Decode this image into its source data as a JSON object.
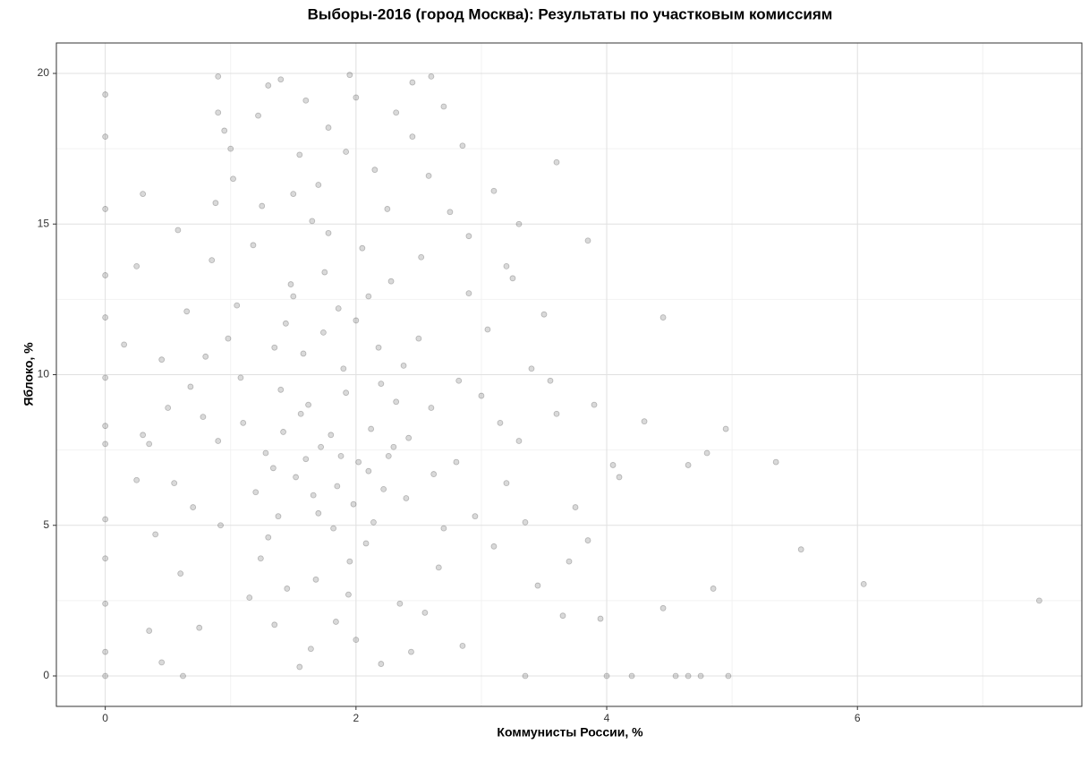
{
  "chart_data": {
    "type": "scatter",
    "title": "Выборы-2016 (город Москва): Результаты по участковым комиссиям",
    "xlabel": "Коммунисты России, %",
    "ylabel": "Яблоко, %",
    "xlim": [
      -0.39,
      7.79
    ],
    "ylim": [
      -1.01,
      21.01
    ],
    "xticks": [
      0,
      2,
      4,
      6
    ],
    "yticks": [
      0,
      5,
      10,
      15,
      20
    ],
    "xminorticks": [
      1,
      3,
      5,
      7
    ],
    "yminorticks": [
      2.5,
      7.5,
      12.5,
      17.5
    ],
    "grid": true,
    "color": "#000000",
    "alpha": 0.15,
    "x": [
      1.8,
      1.6,
      2.1,
      1.4,
      2.3,
      1.9,
      1.2,
      2.6,
      1.7,
      2.0,
      1.5,
      2.4,
      1.1,
      2.8,
      1.3,
      2.2,
      1.75,
      0.9,
      2.5,
      1.95,
      1.65,
      2.05,
      1.35,
      3.0,
      0.8,
      2.7,
      1.85,
      1.45,
      2.35,
      3.2,
      1.05,
      0.7,
      2.9,
      1.55,
      2.15,
      1.25,
      0.95,
      1.6,
      2.45,
      2.75,
      3.4,
      3.6,
      3.1,
      2.55,
      1.15,
      0.6,
      0.5,
      0.85,
      1.35,
      2.0,
      1.72,
      1.88,
      2.12,
      1.52,
      1.98,
      1.62,
      2.22,
      1.42,
      2.32,
      1.82,
      1.28,
      2.42,
      1.92,
      1.58,
      2.18,
      1.38,
      2.62,
      1.08,
      2.82,
      1.68,
      2.08,
      1.48,
      2.28,
      1.78,
      0.98,
      2.52,
      1.18,
      3.05,
      0.78,
      2.95,
      3.3,
      3.5,
      0.65,
      0.55,
      3.75,
      3.9,
      0.4,
      3.45,
      0.75,
      2.85,
      1.22,
      1.78,
      2.32,
      1.02,
      2.58,
      0.88,
      2.9,
      3.25,
      0.58,
      1.92,
      1.74,
      1.86,
      2.02,
      1.56,
      1.66,
      2.26,
      1.34,
      2.38,
      1.44,
      2.14,
      1.94,
      1.24,
      2.66,
      1.64,
      2.44,
      0.92,
      3.15,
      0.68,
      3.55,
      1.84,
      3.7,
      4.1,
      3.95,
      3.85,
      3.35,
      0.35,
      0.45,
      0.25,
      0.3,
      3.65,
      1.5,
      2.25,
      1.0,
      2.7,
      1.3,
      2.0,
      0.9,
      2.85,
      1.7,
      2.1,
      0,
      0,
      0,
      0,
      0,
      0,
      0,
      0,
      0,
      0,
      0,
      0,
      0,
      7.45,
      6.05,
      5.55,
      5.35,
      4.95,
      4.85,
      4.8,
      4.65,
      4.45,
      4.45,
      4.97,
      4.75,
      4.65,
      4.55,
      4.2,
      4.0,
      4.3,
      4.05,
      3.85,
      3.6,
      3.1,
      3.3,
      3.2,
      2.45,
      2.6,
      1.95,
      1.4,
      0.9,
      0.3,
      0.15,
      0.25,
      0.35,
      0.45,
      0.62,
      1.55,
      2.2,
      3.35
    ],
    "y": [
      8.0,
      7.2,
      6.8,
      9.5,
      7.6,
      10.2,
      6.1,
      8.9,
      5.4,
      11.8,
      12.6,
      5.9,
      8.4,
      7.1,
      4.6,
      9.7,
      13.4,
      7.8,
      11.2,
      3.8,
      15.1,
      14.2,
      10.9,
      9.3,
      10.6,
      4.9,
      6.3,
      2.9,
      2.4,
      6.4,
      12.3,
      5.6,
      12.7,
      17.3,
      16.8,
      15.6,
      18.1,
      19.1,
      17.9,
      15.4,
      10.2,
      8.7,
      4.3,
      2.1,
      2.6,
      3.4,
      8.9,
      13.8,
      1.7,
      1.2,
      7.6,
      7.3,
      8.2,
      6.6,
      5.7,
      9.0,
      6.2,
      8.1,
      9.1,
      4.9,
      7.4,
      7.9,
      9.4,
      10.7,
      10.9,
      5.3,
      6.7,
      9.9,
      9.8,
      3.2,
      4.4,
      13.0,
      13.1,
      14.7,
      11.2,
      13.9,
      14.3,
      11.5,
      8.6,
      5.3,
      7.8,
      12.0,
      12.1,
      6.4,
      5.6,
      9.0,
      4.7,
      3.0,
      1.6,
      1.0,
      18.6,
      18.2,
      18.7,
      16.5,
      16.6,
      15.7,
      14.6,
      13.2,
      14.8,
      17.4,
      11.4,
      12.2,
      7.1,
      8.7,
      6.0,
      7.3,
      6.9,
      10.3,
      11.7,
      5.1,
      2.7,
      3.9,
      3.6,
      0.9,
      0.8,
      5.0,
      8.4,
      9.6,
      9.8,
      1.8,
      3.8,
      6.6,
      1.9,
      4.5,
      5.1,
      7.7,
      10.5,
      6.5,
      8.0,
      2.0,
      16.0,
      15.5,
      17.5,
      18.9,
      19.6,
      19.2,
      18.7,
      17.6,
      16.3,
      12.6,
      0,
      19.3,
      17.9,
      15.5,
      13.3,
      11.9,
      9.9,
      8.3,
      7.7,
      5.2,
      3.9,
      2.4,
      0.8,
      2.5,
      3.05,
      4.2,
      7.1,
      8.2,
      2.9,
      7.4,
      7.0,
      11.9,
      2.25,
      0,
      0,
      0,
      0,
      0,
      0,
      8.45,
      7.0,
      14.45,
      17.05,
      16.1,
      15,
      13.6,
      19.7,
      19.9,
      19.95,
      19.8,
      19.9,
      16.0,
      11.0,
      13.6,
      1.5,
      0.45,
      0,
      0.3,
      0.4,
      0
    ]
  }
}
